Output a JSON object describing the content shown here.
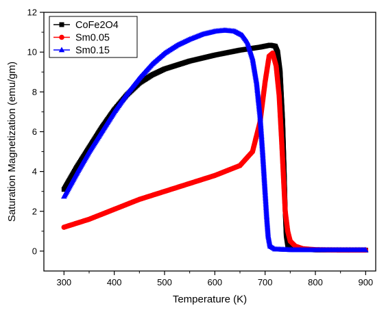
{
  "chart_data": {
    "type": "scatter",
    "title": "",
    "xlabel": "Temperature (K)",
    "ylabel": "Saturation Magnetization (emu/gm)",
    "xlim": [
      260,
      920
    ],
    "ylim": [
      -1,
      12
    ],
    "x_ticks": [
      300,
      400,
      500,
      600,
      700,
      800,
      900
    ],
    "y_ticks": [
      0,
      2,
      4,
      6,
      8,
      10,
      12
    ],
    "x_tick_labels": [
      "300",
      "400",
      "500",
      "600",
      "700",
      "800",
      "900"
    ],
    "y_tick_labels": [
      "0",
      "2",
      "4",
      "6",
      "8",
      "10",
      "12"
    ],
    "grid": false,
    "legend_position": "top-left",
    "series": [
      {
        "name": "CoFe2O4",
        "color": "#000000",
        "marker": "square",
        "points": [
          [
            300,
            3.1
          ],
          [
            325,
            4.2
          ],
          [
            350,
            5.2
          ],
          [
            375,
            6.2
          ],
          [
            400,
            7.1
          ],
          [
            425,
            7.85
          ],
          [
            450,
            8.45
          ],
          [
            475,
            8.85
          ],
          [
            500,
            9.15
          ],
          [
            550,
            9.55
          ],
          [
            600,
            9.85
          ],
          [
            650,
            10.1
          ],
          [
            690,
            10.25
          ],
          [
            710,
            10.35
          ],
          [
            720,
            10.3
          ],
          [
            725,
            10.0
          ],
          [
            730,
            9.0
          ],
          [
            735,
            6.5
          ],
          [
            738,
            4.0
          ],
          [
            740,
            2.0
          ],
          [
            742,
            0.8
          ],
          [
            745,
            0.3
          ],
          [
            750,
            0.12
          ],
          [
            800,
            0.06
          ],
          [
            850,
            0.05
          ],
          [
            900,
            0.05
          ]
        ]
      },
      {
        "name": "Sm0.05",
        "color": "#ff0000",
        "marker": "circle",
        "points": [
          [
            300,
            1.2
          ],
          [
            350,
            1.6
          ],
          [
            400,
            2.1
          ],
          [
            450,
            2.6
          ],
          [
            500,
            3.0
          ],
          [
            550,
            3.4
          ],
          [
            600,
            3.8
          ],
          [
            650,
            4.3
          ],
          [
            675,
            5.0
          ],
          [
            690,
            6.5
          ],
          [
            700,
            8.5
          ],
          [
            708,
            9.8
          ],
          [
            715,
            9.95
          ],
          [
            722,
            9.3
          ],
          [
            728,
            7.8
          ],
          [
            733,
            5.5
          ],
          [
            737,
            3.5
          ],
          [
            740,
            2.0
          ],
          [
            745,
            1.0
          ],
          [
            750,
            0.5
          ],
          [
            760,
            0.25
          ],
          [
            775,
            0.12
          ],
          [
            800,
            0.07
          ],
          [
            850,
            0.05
          ],
          [
            900,
            0.05
          ]
        ]
      },
      {
        "name": "Sm0.15",
        "color": "#0000ff",
        "marker": "triangle",
        "points": [
          [
            300,
            2.75
          ],
          [
            325,
            3.9
          ],
          [
            350,
            5.0
          ],
          [
            375,
            6.0
          ],
          [
            400,
            7.0
          ],
          [
            425,
            7.9
          ],
          [
            450,
            8.7
          ],
          [
            475,
            9.4
          ],
          [
            500,
            9.95
          ],
          [
            525,
            10.35
          ],
          [
            550,
            10.65
          ],
          [
            575,
            10.9
          ],
          [
            600,
            11.05
          ],
          [
            620,
            11.1
          ],
          [
            640,
            11.05
          ],
          [
            655,
            10.85
          ],
          [
            665,
            10.5
          ],
          [
            675,
            9.7
          ],
          [
            683,
            8.5
          ],
          [
            690,
            6.8
          ],
          [
            695,
            5.0
          ],
          [
            700,
            3.0
          ],
          [
            703,
            1.8
          ],
          [
            706,
            0.8
          ],
          [
            710,
            0.25
          ],
          [
            720,
            0.1
          ],
          [
            750,
            0.07
          ],
          [
            800,
            0.06
          ],
          [
            900,
            0.06
          ]
        ]
      }
    ]
  }
}
